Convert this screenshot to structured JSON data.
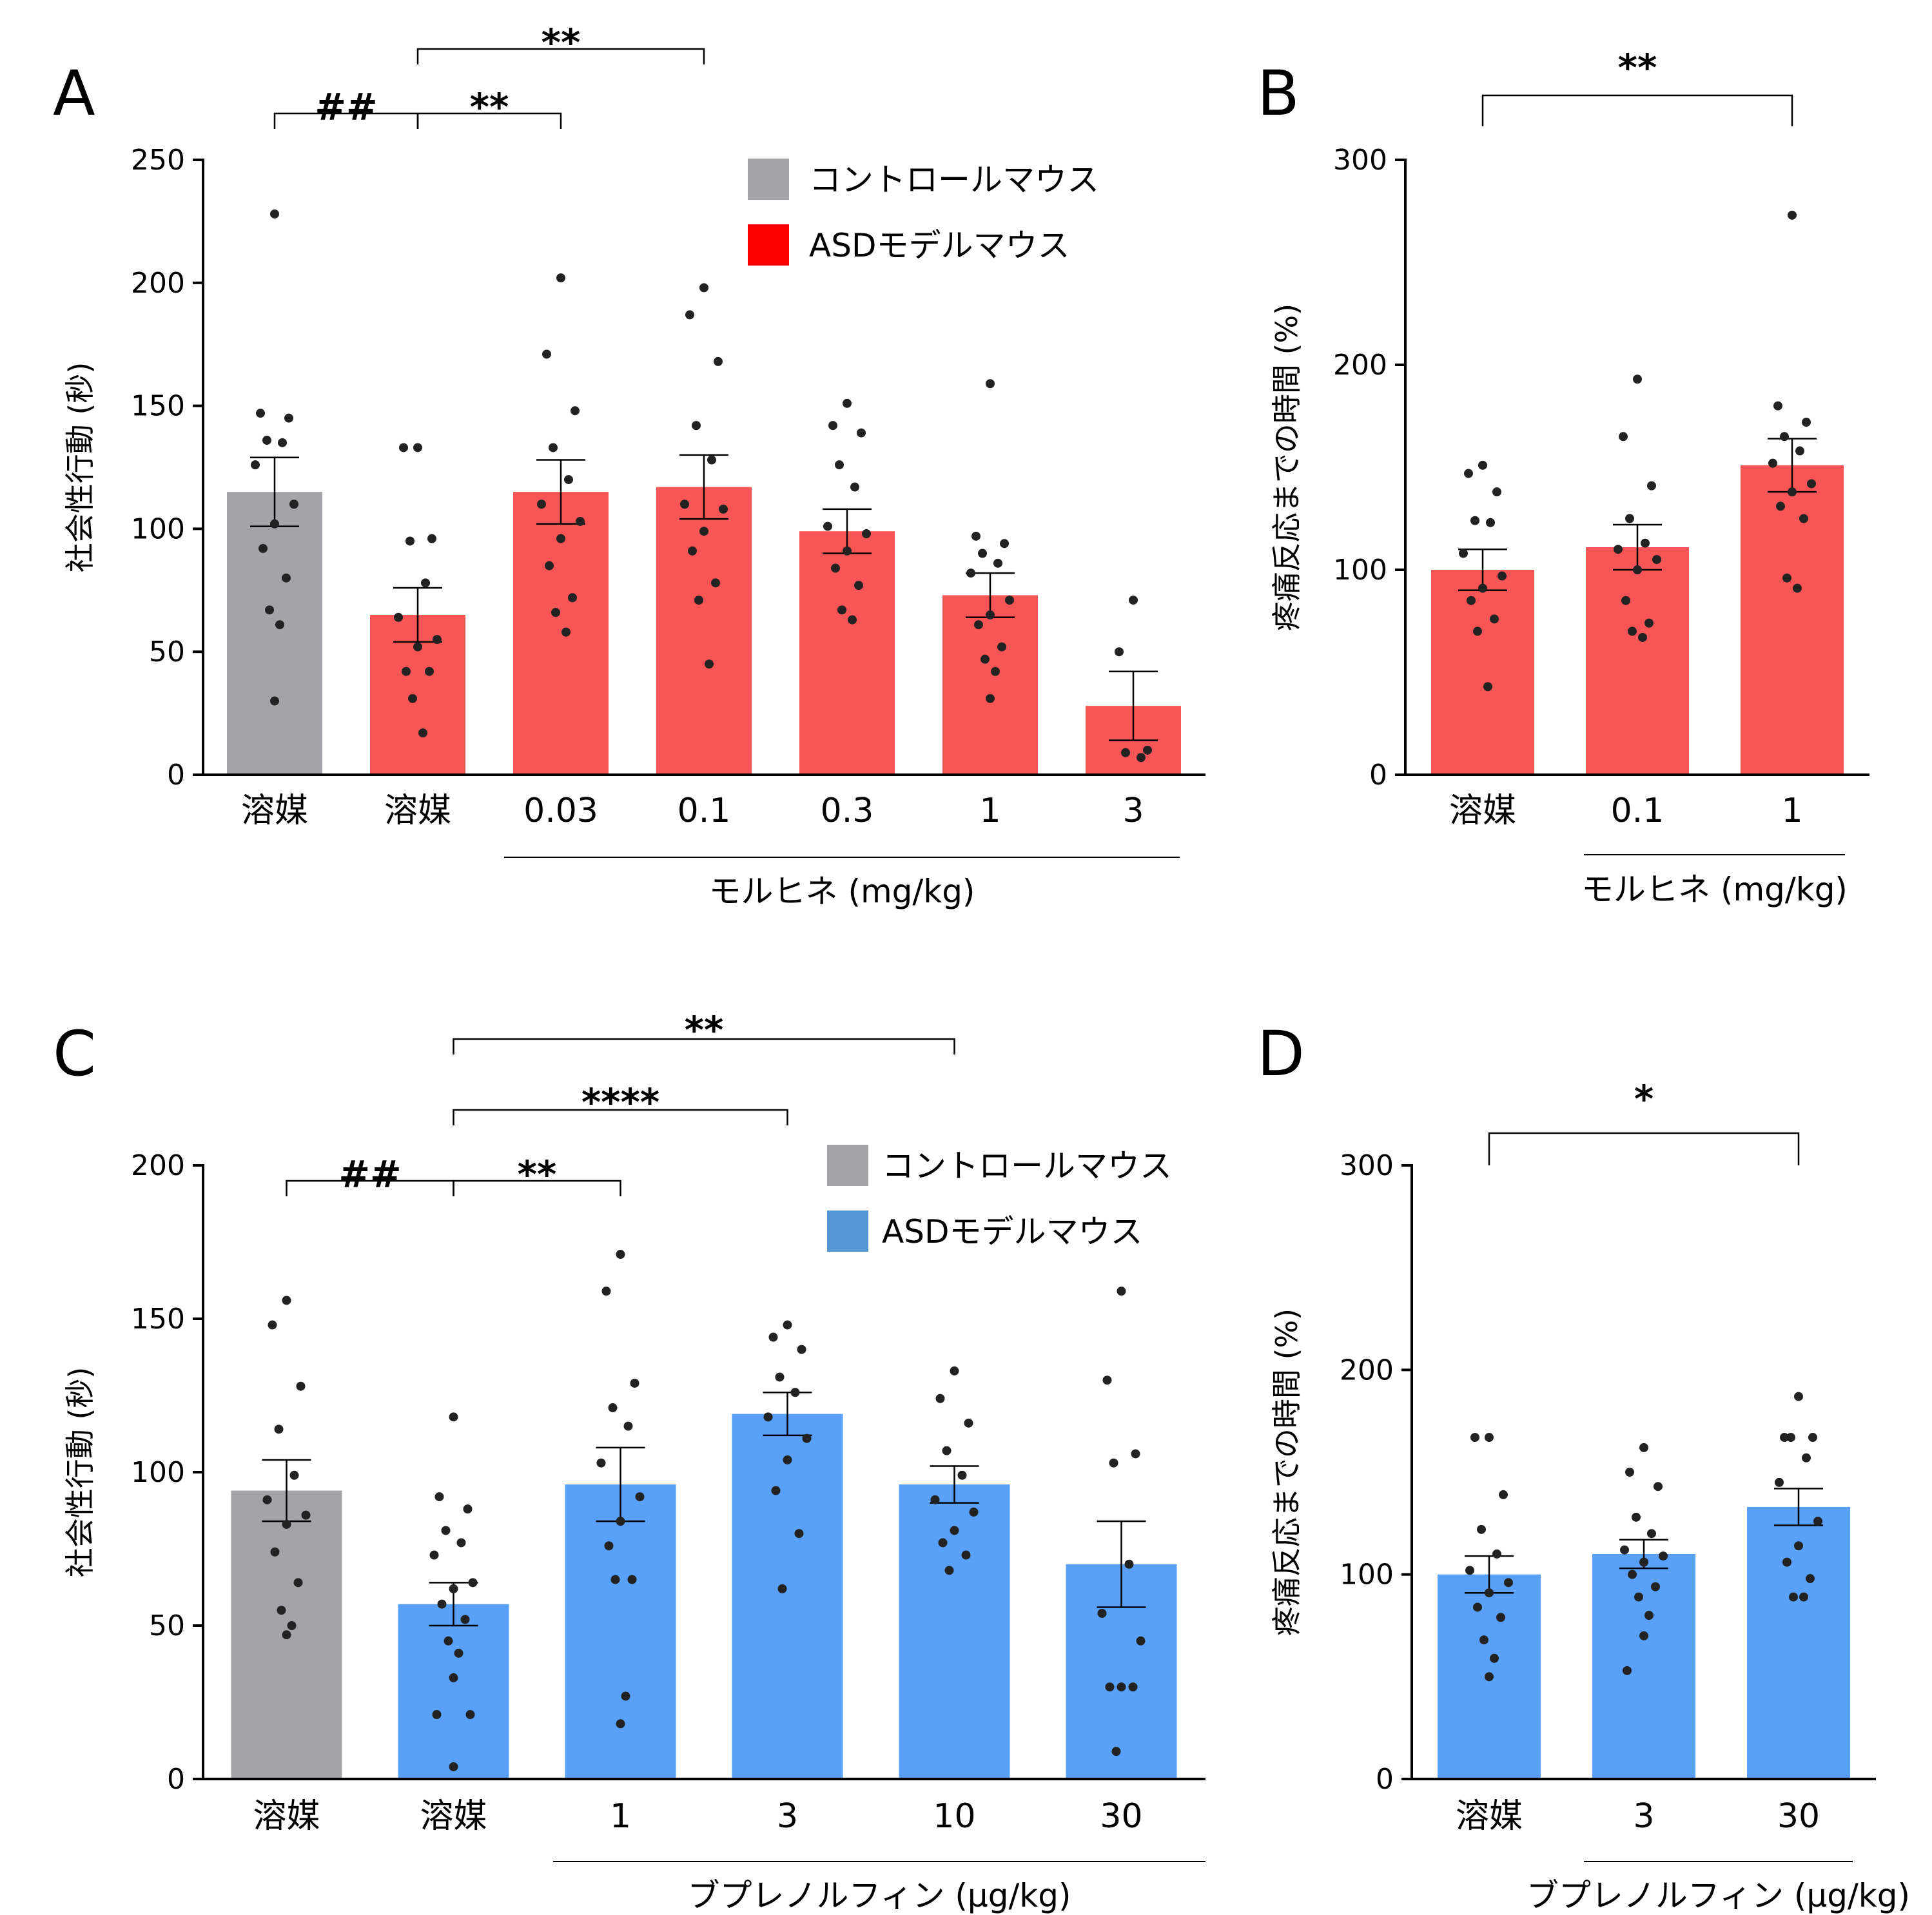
{
  "colors": {
    "control": "#a4a3a8",
    "red": "#f85556",
    "red_legend": "#fb0000",
    "blue": "#58a0f8",
    "blue_legend": "#5596d6",
    "dot": "#222222",
    "axis": "#000000"
  },
  "chart_data": [
    {
      "panel": "A",
      "type": "bar",
      "ylabel": "社会性行動 (秒)",
      "ylim": [
        0,
        250
      ],
      "yticks": [
        0,
        50,
        100,
        150,
        200,
        250
      ],
      "categories": [
        "溶媒",
        "溶媒",
        "0.03",
        "0.1",
        "0.3",
        "1",
        "3"
      ],
      "groups": [
        "control",
        "model",
        "model",
        "model",
        "model",
        "model",
        "model"
      ],
      "means": [
        115,
        65,
        115,
        117,
        99,
        73,
        28
      ],
      "sem": [
        14,
        11,
        13,
        13,
        9,
        9,
        14
      ],
      "points": [
        [
          228,
          147,
          145,
          136,
          135,
          126,
          110,
          102,
          92,
          80,
          67,
          61,
          30
        ],
        [
          133,
          133,
          96,
          95,
          78,
          64,
          55,
          52,
          42,
          42,
          31,
          17
        ],
        [
          202,
          171,
          148,
          133,
          120,
          110,
          103,
          96,
          85,
          72,
          66,
          58
        ],
        [
          198,
          187,
          168,
          142,
          128,
          110,
          108,
          99,
          91,
          78,
          71,
          45
        ],
        [
          151,
          142,
          139,
          126,
          117,
          101,
          98,
          91,
          84,
          77,
          67,
          63
        ],
        [
          159,
          97,
          94,
          90,
          86,
          82,
          71,
          65,
          61,
          52,
          47,
          42,
          31
        ],
        [
          71,
          50,
          10,
          9,
          7
        ]
      ],
      "group_label": "モルヒネ (mg/kg)",
      "legend": [
        {
          "label": "コントロールマウス",
          "group": "control"
        },
        {
          "label": "ASDモデルマウス",
          "group": "model"
        }
      ],
      "sig": [
        {
          "from": 0,
          "to": 1,
          "label": "##"
        },
        {
          "from": 1,
          "to": 2,
          "label": "**"
        },
        {
          "from": 1,
          "to": 3,
          "label": "**"
        }
      ]
    },
    {
      "panel": "B",
      "type": "bar",
      "ylabel": "疼痛反応までの時間 (%)",
      "ylim": [
        0,
        300
      ],
      "yticks": [
        0,
        100,
        200,
        300
      ],
      "categories": [
        "溶媒",
        "0.1",
        "1"
      ],
      "groups": [
        "model",
        "model",
        "model"
      ],
      "means": [
        100,
        111,
        151
      ],
      "sem": [
        10,
        11,
        13
      ],
      "points": [
        [
          151,
          147,
          138,
          124,
          123,
          108,
          97,
          91,
          85,
          76,
          70,
          43
        ],
        [
          193,
          165,
          141,
          125,
          113,
          110,
          105,
          100,
          85,
          74,
          70,
          67
        ],
        [
          273,
          180,
          172,
          165,
          158,
          152,
          142,
          138,
          131,
          125,
          96,
          91
        ]
      ],
      "group_label": "モルヒネ (mg/kg)",
      "group_from": 1,
      "sig": [
        {
          "from": 0,
          "to": 2,
          "label": "**"
        }
      ]
    },
    {
      "panel": "C",
      "type": "bar",
      "ylabel": "社会性行動 (秒)",
      "ylim": [
        0,
        200
      ],
      "yticks": [
        0,
        50,
        100,
        150,
        200
      ],
      "categories": [
        "溶媒",
        "溶媒",
        "1",
        "3",
        "10",
        "30"
      ],
      "groups": [
        "control",
        "model",
        "model",
        "model",
        "model",
        "model"
      ],
      "means": [
        94,
        57,
        96,
        119,
        96,
        70
      ],
      "sem": [
        10,
        7,
        12,
        7,
        6,
        14
      ],
      "points": [
        [
          156,
          148,
          128,
          114,
          99,
          91,
          86,
          83,
          74,
          64,
          55,
          50,
          47
        ],
        [
          118,
          92,
          88,
          81,
          77,
          73,
          64,
          62,
          57,
          52,
          45,
          41,
          33,
          21,
          21,
          4
        ],
        [
          171,
          159,
          129,
          121,
          115,
          103,
          92,
          84,
          76,
          65,
          65,
          27,
          18
        ],
        [
          148,
          144,
          140,
          131,
          126,
          118,
          111,
          104,
          94,
          80,
          62
        ],
        [
          133,
          124,
          116,
          107,
          99,
          91,
          87,
          81,
          77,
          73,
          68
        ],
        [
          159,
          130,
          106,
          103,
          70,
          54,
          45,
          30,
          30,
          30,
          9
        ]
      ],
      "group_label": "ブプレノルフィン (μg/kg)",
      "legend": [
        {
          "label": "コントロールマウス",
          "group": "control"
        },
        {
          "label": "ASDモデルマウス",
          "group": "model"
        }
      ],
      "sig": [
        {
          "from": 0,
          "to": 1,
          "label": "##"
        },
        {
          "from": 1,
          "to": 2,
          "label": "**"
        },
        {
          "from": 1,
          "to": 3,
          "label": "****"
        },
        {
          "from": 1,
          "to": 4,
          "label": "**"
        }
      ]
    },
    {
      "panel": "D",
      "type": "bar",
      "ylabel": "疼痛反応までの時間 (%)",
      "ylim": [
        0,
        300
      ],
      "yticks": [
        0,
        100,
        200,
        300
      ],
      "categories": [
        "溶媒",
        "3",
        "30"
      ],
      "groups": [
        "model",
        "model",
        "model"
      ],
      "means": [
        100,
        110,
        133
      ],
      "sem": [
        9,
        7,
        9
      ],
      "points": [
        [
          167,
          167,
          139,
          122,
          110,
          102,
          96,
          91,
          84,
          79,
          68,
          59,
          50
        ],
        [
          162,
          150,
          143,
          128,
          120,
          112,
          109,
          106,
          100,
          94,
          89,
          80,
          70,
          53
        ],
        [
          187,
          167,
          167,
          167,
          157,
          145,
          126,
          114,
          106,
          98,
          89,
          89
        ]
      ],
      "group_label": "ブプレノルフィン (μg/kg)",
      "group_from": 1,
      "sig": [
        {
          "from": 0,
          "to": 2,
          "label": "*"
        }
      ]
    }
  ]
}
